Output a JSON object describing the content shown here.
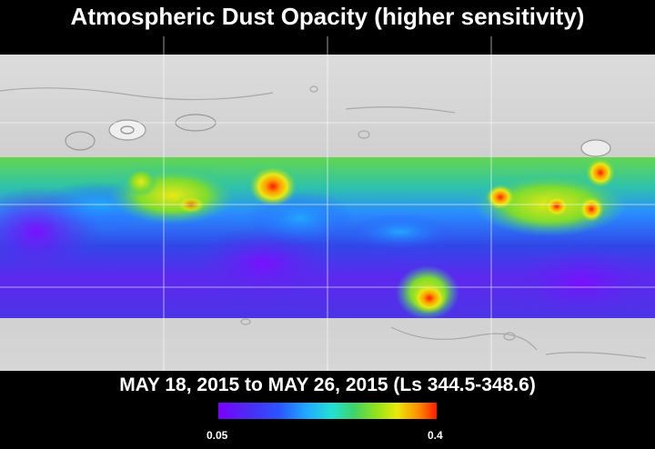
{
  "title": "Atmospheric Dust Opacity (higher sensitivity)",
  "date_range": "MAY 18, 2015 to MAY 26, 2015 (Ls 344.5-348.6)",
  "colorbar": {
    "min_label": "0.05",
    "max_label": "0.4",
    "colors": [
      "#7a00ff",
      "#4a2cf2",
      "#2a56ff",
      "#21a7ff",
      "#22e0d4",
      "#3ed26a",
      "#8ee21c",
      "#ece80a",
      "#ff8a00",
      "#ff1a00"
    ]
  },
  "map": {
    "basemap": "shaded-relief-terrain",
    "overlay": "dust-opacity-heatmap",
    "grid_lines": true
  }
}
